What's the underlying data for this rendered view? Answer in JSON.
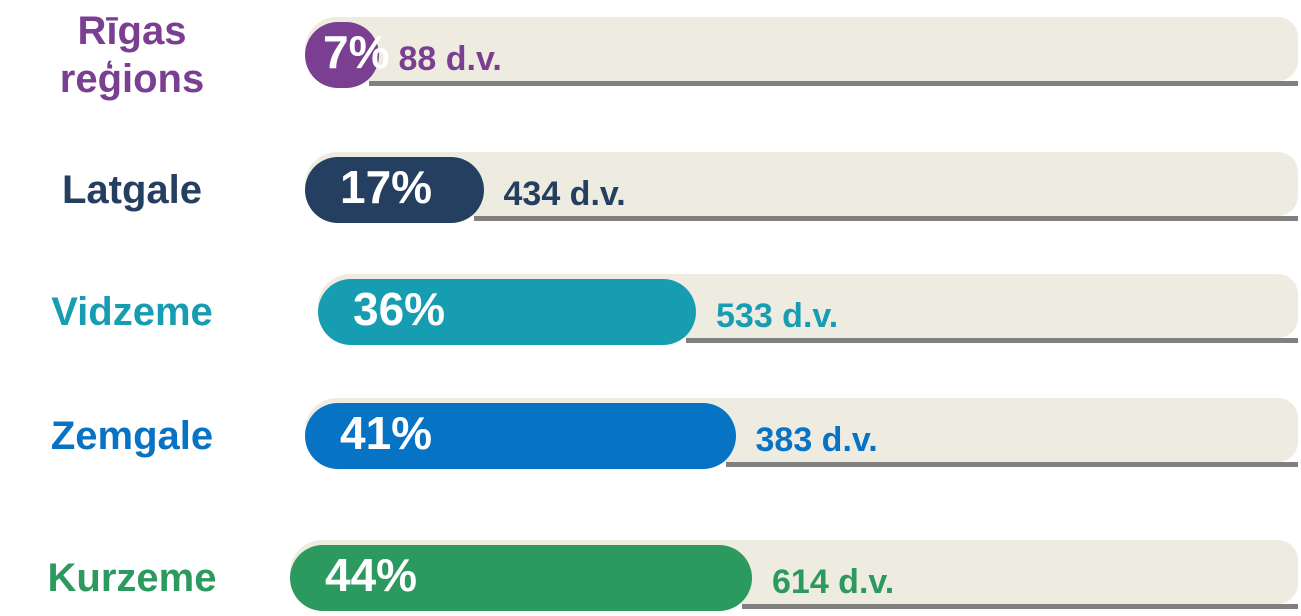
{
  "chart_data": {
    "type": "bar",
    "categories": [
      "Rīgas reģions",
      "Latgale",
      "Vidzeme",
      "Zemgale",
      "Kurzeme"
    ],
    "values": [
      7,
      17,
      36,
      41,
      44
    ],
    "value_labels": [
      "7%",
      "17%",
      "36%",
      "41%",
      "44%"
    ],
    "count_labels": [
      "88 d.v.",
      "434 d.v.",
      "533 d.v.",
      "383 d.v.",
      "614 d.v."
    ],
    "colors": [
      "#7b3f91",
      "#243f5f",
      "#169db1",
      "#0773c5",
      "#2c9a5e"
    ],
    "xlim": [
      0,
      100
    ]
  }
}
